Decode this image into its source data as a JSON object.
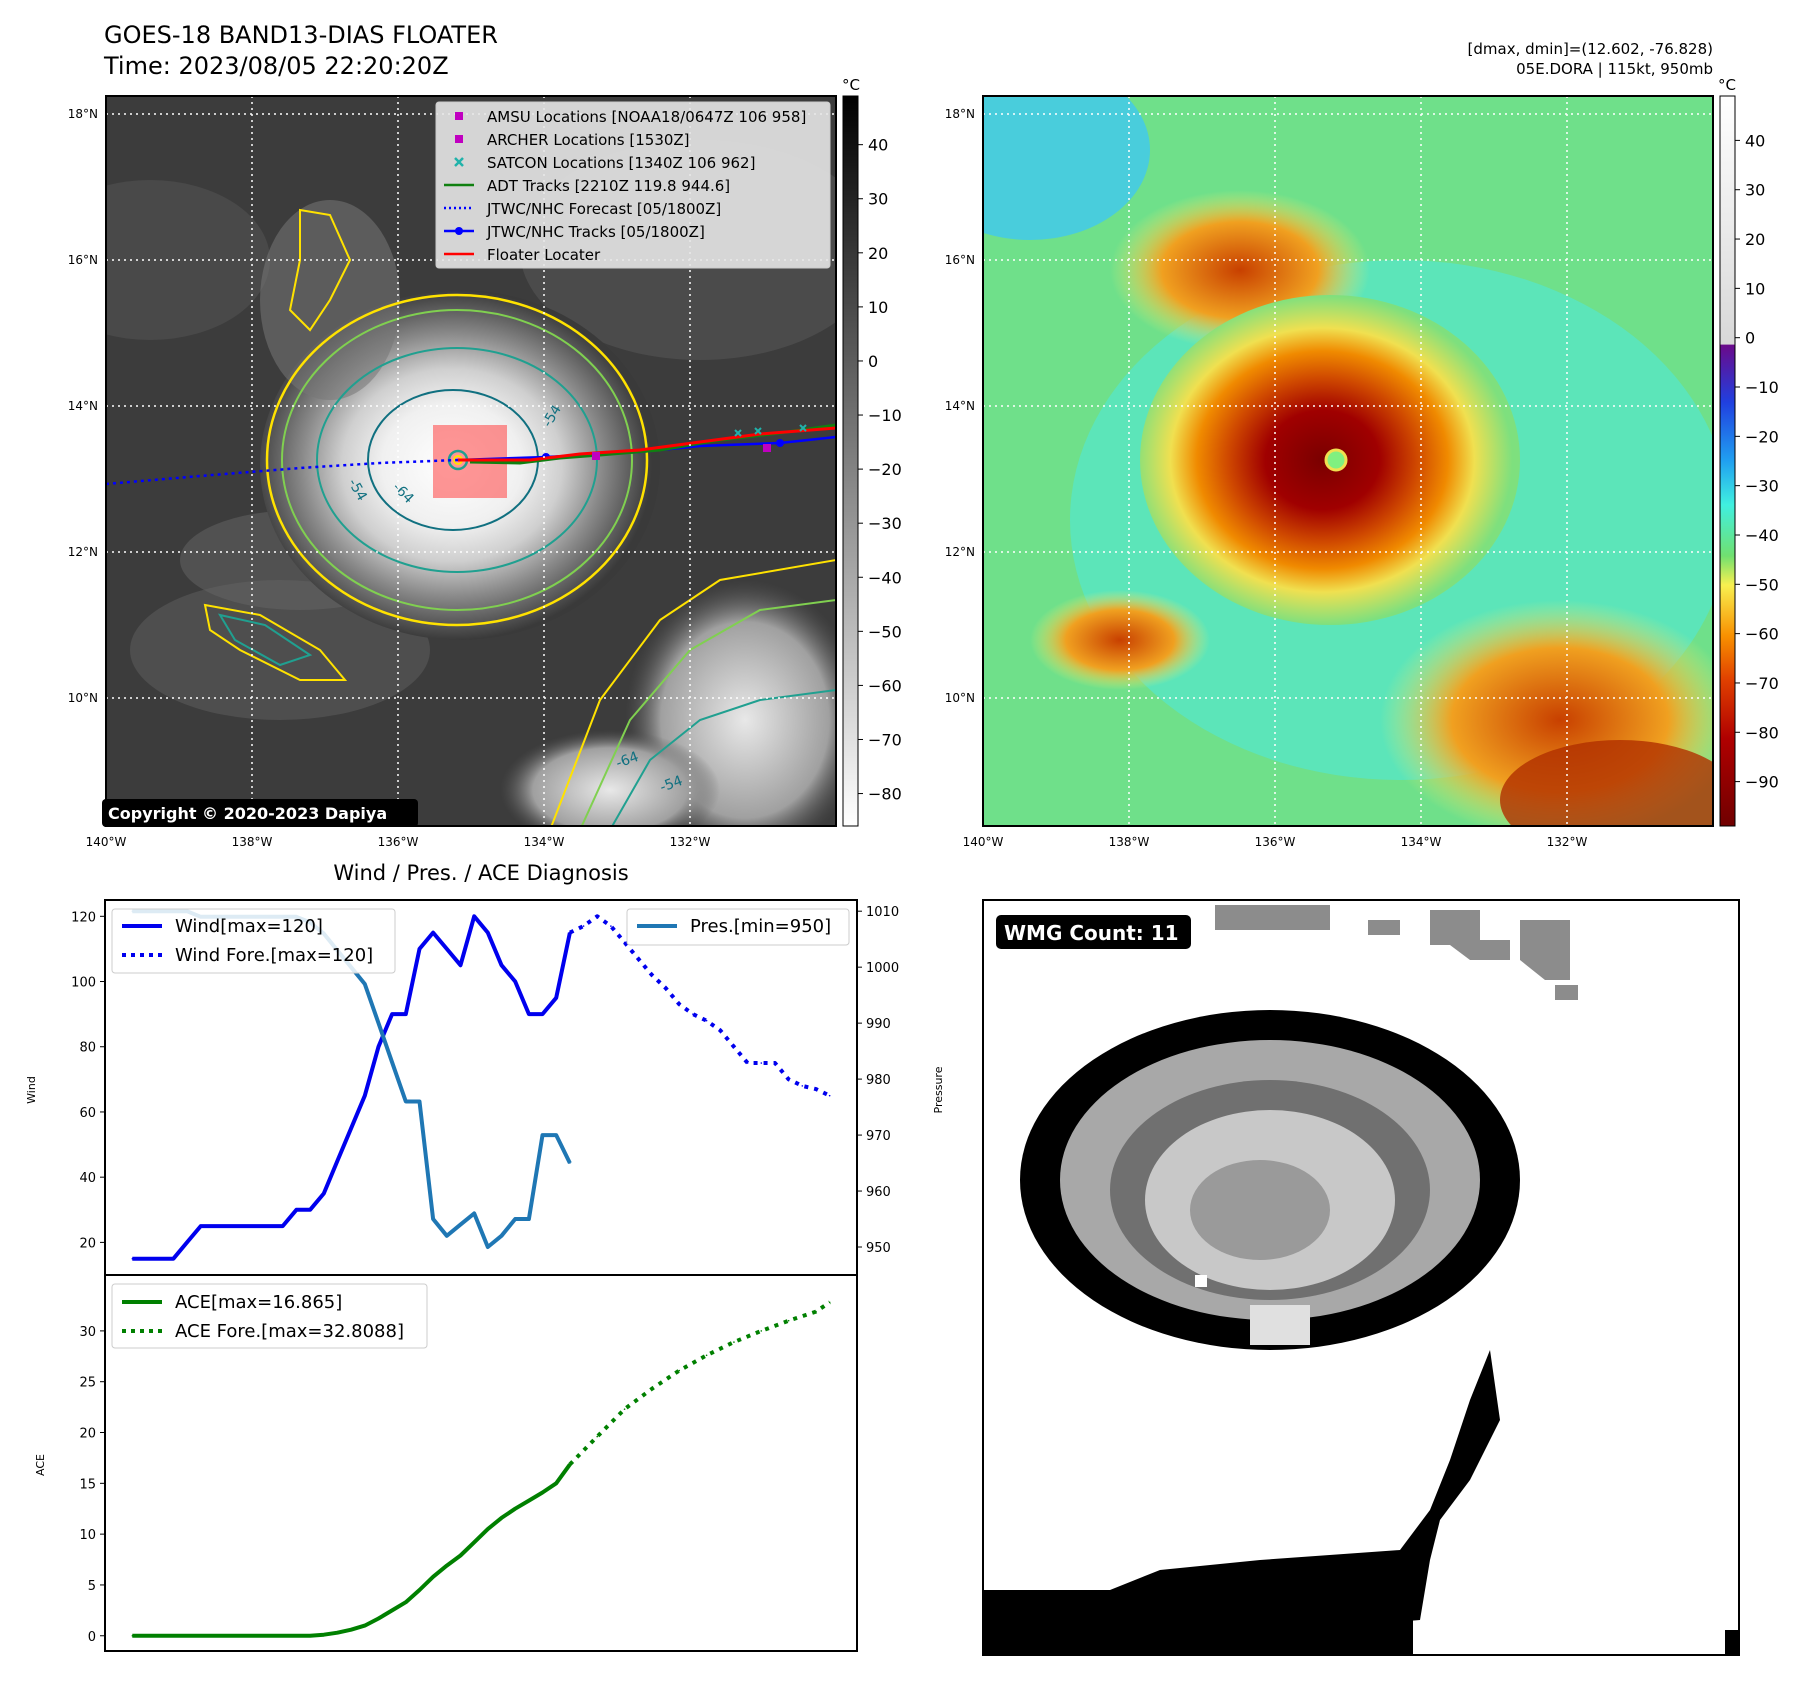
{
  "header": {
    "title_line1": "GOES-18 BAND13-DIAS FLOATER",
    "title_line2": "Time: 2023/08/05 22:20:20Z",
    "stats_line1": "[dmax, dmin]=(12.602, -76.828)",
    "stats_line2": "05E.DORA | 115kt, 950mb"
  },
  "maps": {
    "lat_labels": [
      "18°N",
      "16°N",
      "14°N",
      "12°N",
      "10°N"
    ],
    "lon_labels": [
      "140°W",
      "138°W",
      "136°W",
      "134°W",
      "132°W"
    ],
    "lon_range": [
      -140,
      -130
    ],
    "lat_range": [
      8.3,
      18.3
    ],
    "storm_center": {
      "lon": -135.2,
      "lat": 13.3
    },
    "copyright": "Copyright © 2020-2023 Dapiya",
    "contour_labels": [
      "-54",
      "-64",
      "-54",
      "-64",
      "-54"
    ],
    "legend": [
      {
        "label": "AMSU Locations [NOAA18/0647Z 106 958]",
        "marker": "square",
        "color": "#c000c0"
      },
      {
        "label": "ARCHER Locations [1530Z]",
        "marker": "square",
        "color": "#c000c0"
      },
      {
        "label": "SATCON Locations [1340Z 106 962]",
        "marker": "x",
        "color": "#20b2aa"
      },
      {
        "label": "ADT Tracks [2210Z 119.8 944.6]",
        "marker": "line",
        "color": "#108010"
      },
      {
        "label": "JTWC/NHC Forecast [05/1800Z]",
        "marker": "dotted",
        "color": "#0000ff"
      },
      {
        "label": "JTWC/NHC Tracks [05/1800Z]",
        "marker": "line-dot",
        "color": "#0000ff"
      },
      {
        "label": "Floater Locater",
        "marker": "line",
        "color": "#ff0000"
      }
    ],
    "gray_colorbar": {
      "unit": "°C",
      "ticks": [
        "40",
        "30",
        "20",
        "10",
        "0",
        "−10",
        "−20",
        "−30",
        "−40",
        "−50",
        "−60",
        "−70",
        "−80"
      ]
    },
    "color_colorbar": {
      "unit": "°C",
      "ticks": [
        "40",
        "30",
        "20",
        "10",
        "0",
        "−10",
        "−20",
        "−30",
        "−40",
        "−50",
        "−60",
        "−70",
        "−80",
        "−90"
      ]
    }
  },
  "diagnosis": {
    "title": "Wind / Pres. / ACE Diagnosis",
    "wind_ylabel": "Wind",
    "pressure_ylabel": "Pressure",
    "ace_ylabel": "ACE",
    "wind_ticks": [
      "120",
      "100",
      "80",
      "60",
      "40",
      "20"
    ],
    "pressure_ticks": [
      "1010",
      "1000",
      "990",
      "980",
      "970",
      "960",
      "950"
    ],
    "ace_ticks": [
      "30",
      "25",
      "20",
      "15",
      "10",
      "5",
      "0"
    ],
    "legend_wind": "Wind[max=120]",
    "legend_wind_fore": "Wind Fore.[max=120]",
    "legend_pres": "Pres.[min=950]",
    "legend_ace": "ACE[max=16.865]",
    "legend_ace_fore": "ACE Fore.[max=32.8088]"
  },
  "wmg": {
    "label": "WMG Count: 11"
  },
  "chart_data": [
    {
      "type": "line",
      "title": "Wind / Pres. / ACE Diagnosis",
      "ylabel": "Wind",
      "y2label": "Pressure",
      "ylim": [
        10,
        125
      ],
      "y2lim": [
        945,
        1012
      ],
      "series": [
        {
          "name": "Wind[max=120]",
          "axis": "left",
          "color": "#0000ee",
          "style": "solid",
          "x": [
            0,
            1,
            2,
            3,
            4,
            5,
            6,
            7,
            8,
            9,
            10,
            11,
            12,
            13,
            14,
            15,
            16,
            17,
            18,
            19,
            20,
            21,
            22,
            23,
            24,
            25,
            26,
            27,
            28,
            29,
            30,
            31,
            32
          ],
          "values": [
            15,
            15,
            15,
            15,
            20,
            25,
            25,
            25,
            25,
            25,
            25,
            25,
            30,
            30,
            35,
            45,
            55,
            65,
            80,
            90,
            90,
            110,
            115,
            110,
            105,
            120,
            115,
            105,
            100,
            90,
            90,
            95,
            115
          ]
        },
        {
          "name": "Wind Fore.[max=120]",
          "axis": "left",
          "color": "#0000ee",
          "style": "dotted",
          "x": [
            32,
            33,
            34,
            35,
            36,
            37,
            38,
            39,
            40,
            41,
            42,
            43,
            44,
            45,
            46,
            47,
            48,
            49,
            50,
            51
          ],
          "values": [
            115,
            117,
            120,
            117,
            112,
            107,
            102,
            98,
            93,
            90,
            88,
            85,
            80,
            75,
            75,
            75,
            70,
            68,
            67,
            65
          ]
        },
        {
          "name": "Pres.[min=950]",
          "axis": "right",
          "color": "#1f77b4",
          "style": "solid",
          "x": [
            0,
            1,
            2,
            3,
            4,
            5,
            6,
            7,
            8,
            9,
            10,
            11,
            12,
            13,
            14,
            15,
            16,
            17,
            18,
            19,
            20,
            21,
            22,
            23,
            24,
            25,
            26,
            27,
            28,
            29,
            30,
            31,
            32
          ],
          "values": [
            1010,
            1010,
            1010,
            1010,
            1010,
            1009,
            1009,
            1009,
            1009,
            1009,
            1009,
            1009,
            1009,
            1008,
            1006,
            1003,
            1000,
            997,
            990,
            983,
            976,
            976,
            955,
            952,
            954,
            956,
            950,
            952,
            955,
            955,
            970,
            970,
            965
          ]
        }
      ]
    },
    {
      "type": "line",
      "ylabel": "ACE",
      "ylim": [
        -1.5,
        35.5
      ],
      "series": [
        {
          "name": "ACE[max=16.865]",
          "color": "#008000",
          "style": "solid",
          "x": [
            0,
            2,
            4,
            6,
            8,
            10,
            12,
            13,
            14,
            15,
            16,
            17,
            18,
            19,
            20,
            21,
            22,
            23,
            24,
            25,
            26,
            27,
            28,
            29,
            30,
            31,
            32
          ],
          "values": [
            0,
            0,
            0,
            0,
            0,
            0,
            0,
            0,
            0.1,
            0.3,
            0.6,
            1.0,
            1.7,
            2.5,
            3.3,
            4.5,
            5.8,
            6.9,
            7.9,
            9.2,
            10.5,
            11.6,
            12.5,
            13.3,
            14.1,
            15.0,
            16.865
          ]
        },
        {
          "name": "ACE Fore.[max=32.8088]",
          "color": "#008000",
          "style": "dotted",
          "x": [
            32,
            34,
            36,
            38,
            40,
            42,
            44,
            46,
            48,
            50,
            51
          ],
          "values": [
            16.865,
            19.6,
            22.3,
            24.3,
            26.1,
            27.6,
            28.9,
            30.0,
            31.0,
            31.9,
            32.8088
          ]
        }
      ]
    }
  ]
}
